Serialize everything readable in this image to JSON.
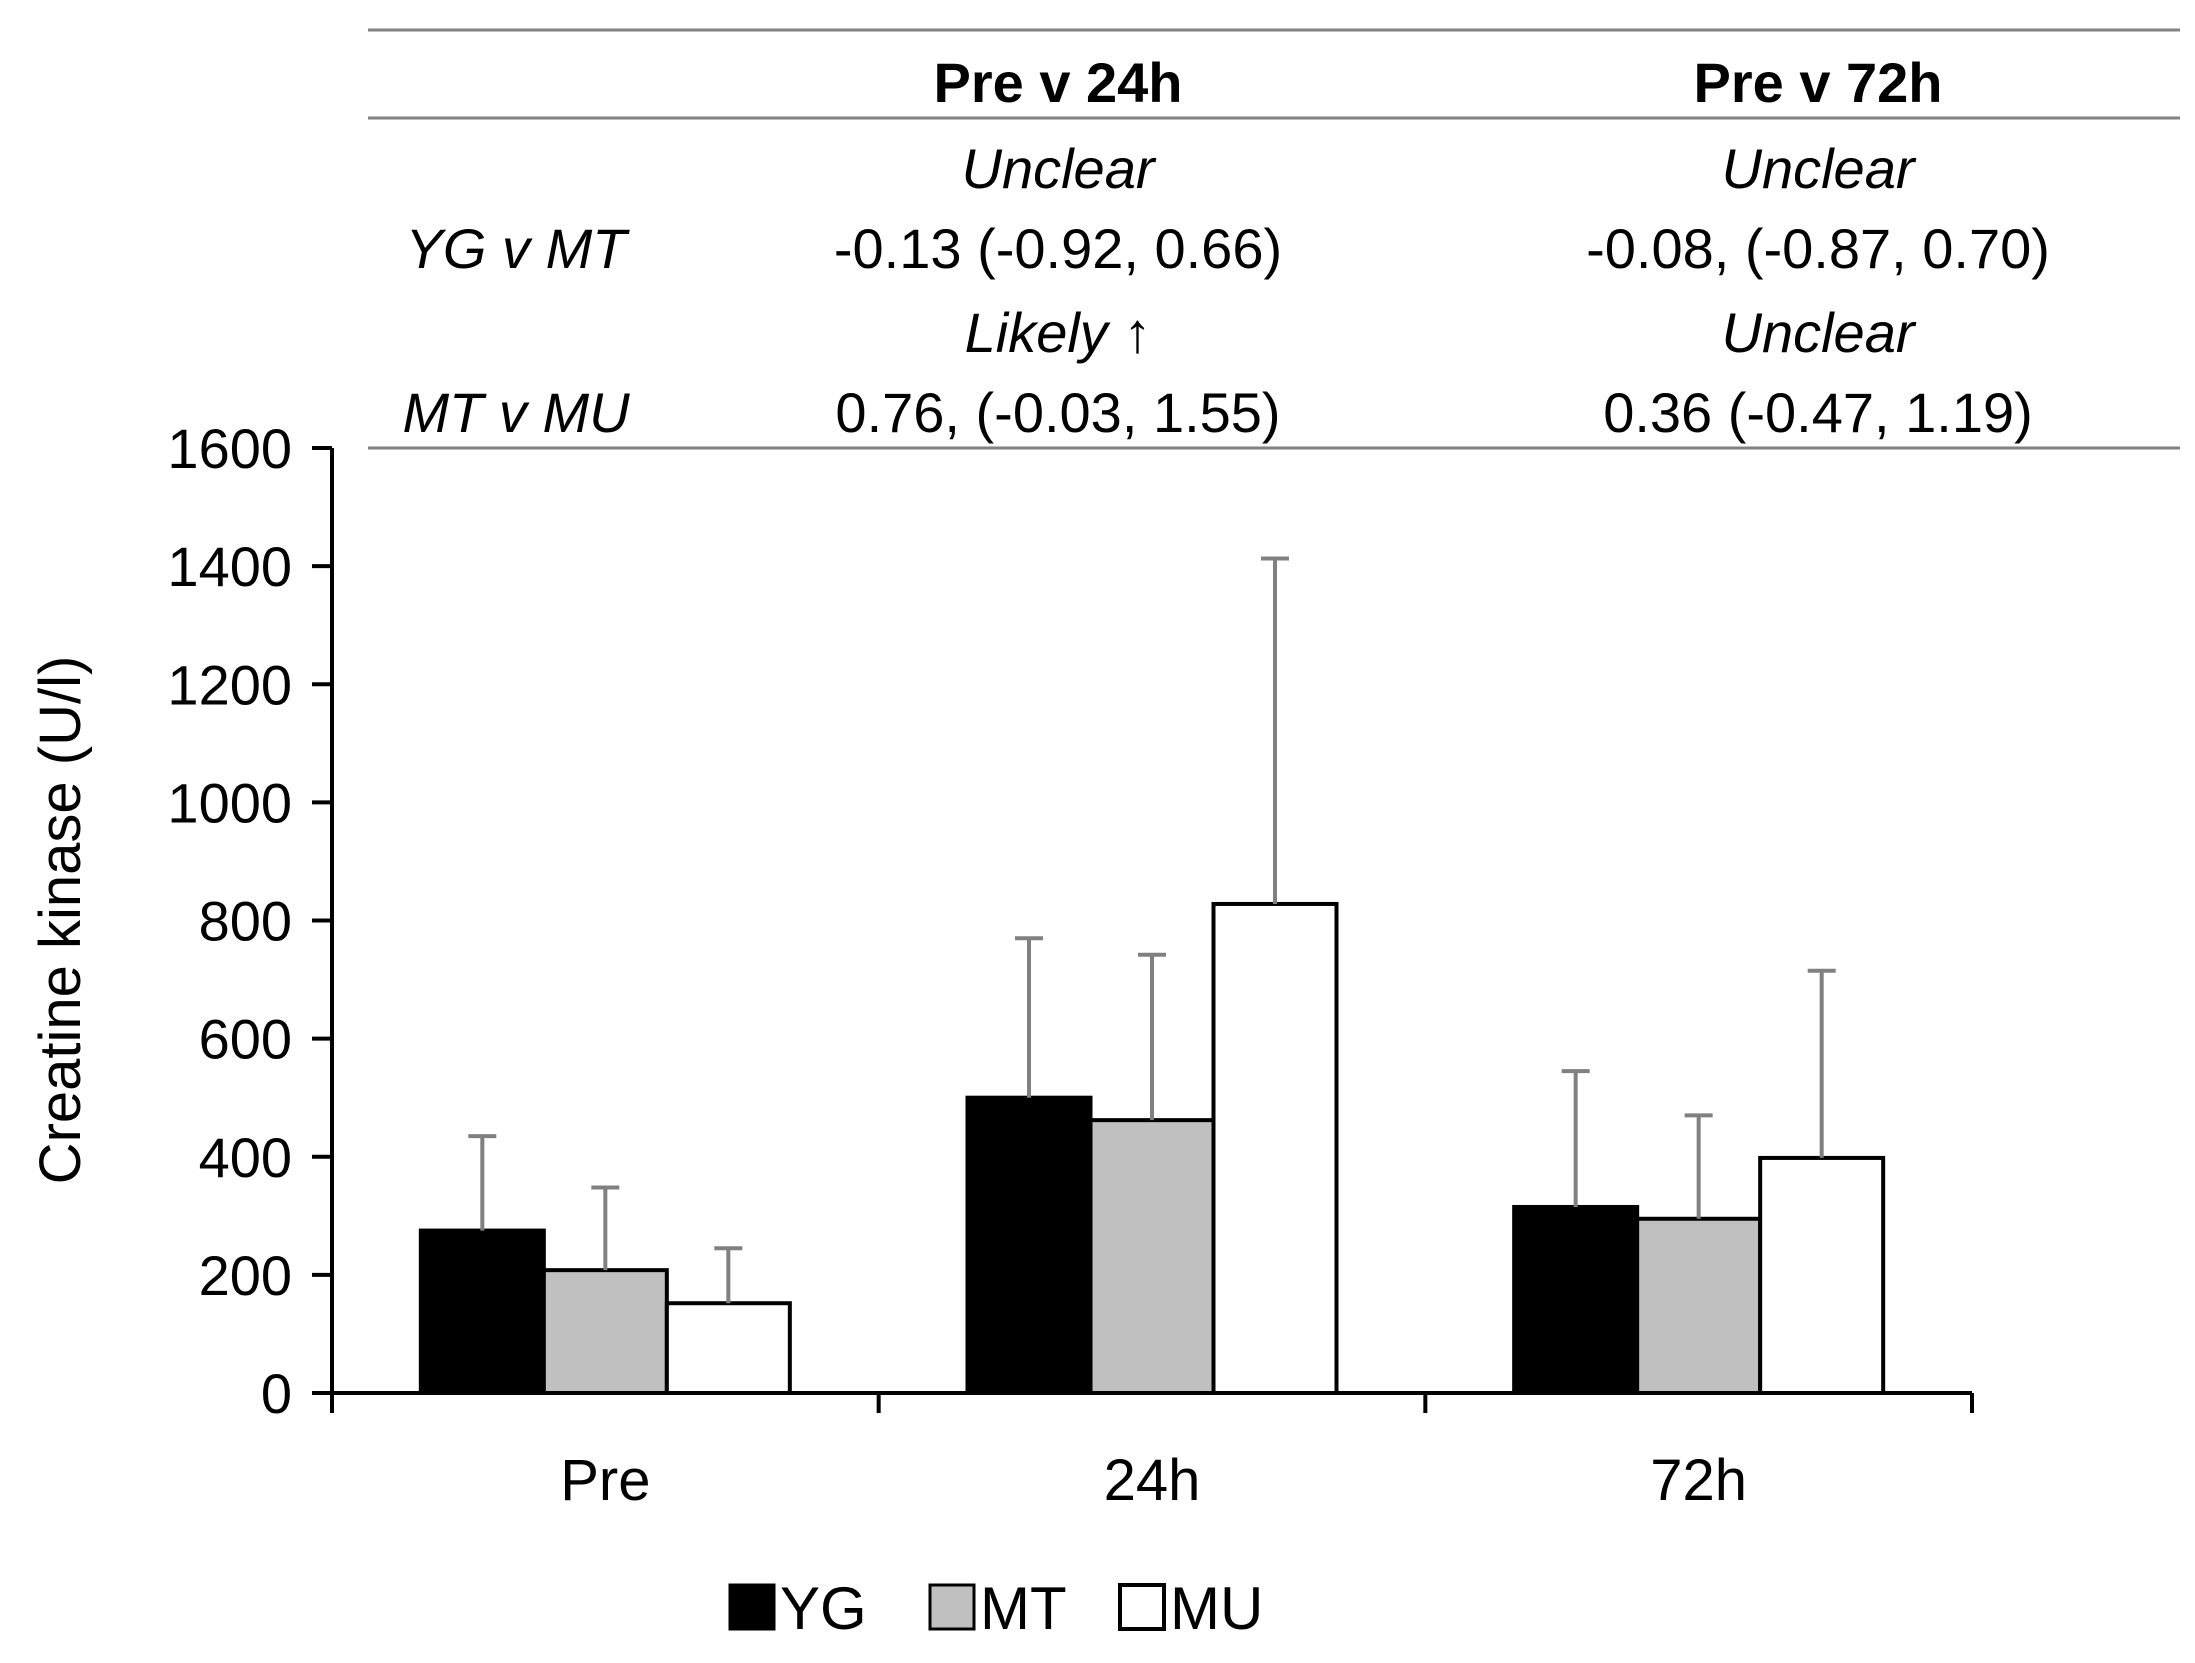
{
  "stats_table": {
    "columns": [
      "Pre v 24h",
      "Pre v 72h"
    ],
    "rows": [
      {
        "label": "YG v MT",
        "cells": [
          {
            "qualifier": "Unclear",
            "value": "-0.13 (-0.92, 0.66)"
          },
          {
            "qualifier": "Unclear",
            "value": "-0.08, (-0.87, 0.70)"
          }
        ]
      },
      {
        "label": "MT v MU",
        "cells": [
          {
            "qualifier": "Likely ↑",
            "value": "0.76, (-0.03, 1.55)"
          },
          {
            "qualifier": "Unclear",
            "value": "0.36 (-0.47, 1.19)"
          }
        ]
      }
    ]
  },
  "chart_data": {
    "type": "bar",
    "title": "",
    "xlabel": "",
    "ylabel": "Creatine kinase (U/l)",
    "ylim": [
      0,
      1600
    ],
    "yticks": [
      0,
      200,
      400,
      600,
      800,
      1000,
      1200,
      1400,
      1600
    ],
    "ytick_labels": [
      "0",
      "200",
      "400",
      "600",
      "800",
      "1000",
      "1200",
      "1400",
      "1600"
    ],
    "categories": [
      "Pre",
      "24h",
      "72h"
    ],
    "series": [
      {
        "name": "YG",
        "values": [
          275,
          500,
          315
        ],
        "errors": [
          160,
          270,
          230
        ],
        "fill": "#000000"
      },
      {
        "name": "MT",
        "values": [
          208,
          462,
          295
        ],
        "errors": [
          140,
          280,
          175
        ],
        "fill": "#c0c0c0"
      },
      {
        "name": "MU",
        "values": [
          152,
          828,
          398
        ],
        "errors": [
          93,
          585,
          317
        ],
        "fill": "#ffffff"
      }
    ],
    "error_bar_color": "#808080",
    "legend": "bottom-center"
  }
}
